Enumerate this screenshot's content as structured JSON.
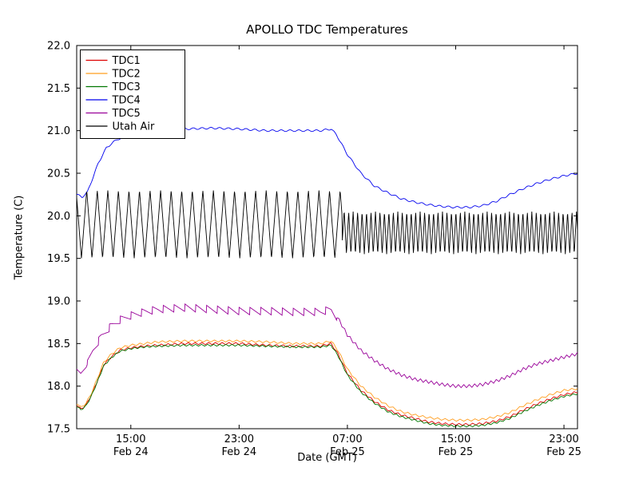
{
  "title": "APOLLO TDC Temperatures",
  "chart_data": {
    "type": "line",
    "title": "APOLLO TDC Temperatures",
    "xlabel": "Date (GMT)",
    "ylabel": "Temperature (C)",
    "ylim": [
      17.5,
      22.0
    ],
    "xlim": [
      0,
      37
    ],
    "grid": false,
    "legend_position": "upper left",
    "yticks": [
      17.5,
      18.0,
      18.5,
      19.0,
      19.5,
      20.0,
      20.5,
      21.0,
      21.5,
      22.0
    ],
    "ytick_labels": [
      "17.5",
      "18.0",
      "18.5",
      "19.0",
      "19.5",
      "20.0",
      "20.5",
      "21.0",
      "21.5",
      "22.0"
    ],
    "xticks": [
      {
        "t": 4,
        "time": "15:00",
        "date": "Feb 24"
      },
      {
        "t": 12,
        "time": "23:00",
        "date": "Feb 24"
      },
      {
        "t": 20,
        "time": "07:00",
        "date": "Feb 25"
      },
      {
        "t": 28,
        "time": "15:00",
        "date": "Feb 25"
      },
      {
        "t": 36,
        "time": "23:00",
        "date": "Feb 25"
      }
    ],
    "x_unit": "hours from Feb 24 11:00 GMT",
    "series": [
      {
        "name": "TDC1",
        "color": "#dd0000",
        "points": [
          [
            0,
            17.78
          ],
          [
            0.3,
            17.73
          ],
          [
            0.7,
            17.78
          ],
          [
            1.1,
            17.9
          ],
          [
            1.5,
            18.05
          ],
          [
            2,
            18.25
          ],
          [
            2.6,
            18.35
          ],
          [
            3.2,
            18.42
          ],
          [
            4,
            18.45
          ],
          [
            5,
            18.47
          ],
          [
            6,
            18.48
          ],
          [
            8,
            18.5
          ],
          [
            10,
            18.5
          ],
          [
            12,
            18.5
          ],
          [
            14,
            18.48
          ],
          [
            16,
            18.47
          ],
          [
            18,
            18.47
          ],
          [
            18.8,
            18.5
          ],
          [
            19.3,
            18.38
          ],
          [
            20,
            18.15
          ],
          [
            21,
            17.95
          ],
          [
            22,
            17.82
          ],
          [
            23,
            17.72
          ],
          [
            24,
            17.66
          ],
          [
            25,
            17.62
          ],
          [
            26,
            17.58
          ],
          [
            27,
            17.56
          ],
          [
            28,
            17.55
          ],
          [
            29,
            17.55
          ],
          [
            30,
            17.56
          ],
          [
            31,
            17.59
          ],
          [
            32,
            17.64
          ],
          [
            33,
            17.72
          ],
          [
            34,
            17.79
          ],
          [
            35,
            17.85
          ],
          [
            36,
            17.9
          ],
          [
            37,
            17.93
          ]
        ],
        "ripple": [
          {
            "t0": 0,
            "t1": 37,
            "amp": 0.012,
            "period": 0.5,
            "shape": "tri"
          }
        ]
      },
      {
        "name": "TDC2",
        "color": "#ff9d1e",
        "points": [
          [
            0,
            17.8
          ],
          [
            0.3,
            17.75
          ],
          [
            0.7,
            17.8
          ],
          [
            1.1,
            17.92
          ],
          [
            1.5,
            18.08
          ],
          [
            2,
            18.28
          ],
          [
            2.6,
            18.38
          ],
          [
            3.2,
            18.45
          ],
          [
            4,
            18.48
          ],
          [
            5,
            18.5
          ],
          [
            6,
            18.52
          ],
          [
            8,
            18.53
          ],
          [
            10,
            18.53
          ],
          [
            12,
            18.53
          ],
          [
            14,
            18.52
          ],
          [
            16,
            18.5
          ],
          [
            18,
            18.5
          ],
          [
            18.8,
            18.53
          ],
          [
            19.3,
            18.42
          ],
          [
            20,
            18.2
          ],
          [
            21,
            18.0
          ],
          [
            22,
            17.87
          ],
          [
            23,
            17.77
          ],
          [
            24,
            17.7
          ],
          [
            25,
            17.66
          ],
          [
            26,
            17.63
          ],
          [
            27,
            17.61
          ],
          [
            28,
            17.6
          ],
          [
            29,
            17.6
          ],
          [
            30,
            17.61
          ],
          [
            31,
            17.64
          ],
          [
            32,
            17.69
          ],
          [
            33,
            17.77
          ],
          [
            34,
            17.84
          ],
          [
            35,
            17.9
          ],
          [
            36,
            17.95
          ],
          [
            37,
            17.97
          ]
        ],
        "ripple": [
          {
            "t0": 0,
            "t1": 37,
            "amp": 0.012,
            "period": 0.55,
            "shape": "tri"
          }
        ]
      },
      {
        "name": "TDC3",
        "color": "#007700",
        "points": [
          [
            0,
            17.77
          ],
          [
            0.3,
            17.72
          ],
          [
            0.7,
            17.77
          ],
          [
            1.1,
            17.89
          ],
          [
            1.5,
            18.04
          ],
          [
            2,
            18.24
          ],
          [
            2.6,
            18.34
          ],
          [
            3.2,
            18.41
          ],
          [
            4,
            18.44
          ],
          [
            5,
            18.46
          ],
          [
            6,
            18.47
          ],
          [
            8,
            18.48
          ],
          [
            10,
            18.48
          ],
          [
            12,
            18.48
          ],
          [
            14,
            18.47
          ],
          [
            16,
            18.46
          ],
          [
            18,
            18.46
          ],
          [
            18.8,
            18.48
          ],
          [
            19.3,
            18.36
          ],
          [
            20,
            18.13
          ],
          [
            21,
            17.93
          ],
          [
            22,
            17.8
          ],
          [
            23,
            17.7
          ],
          [
            24,
            17.64
          ],
          [
            25,
            17.6
          ],
          [
            26,
            17.56
          ],
          [
            27,
            17.54
          ],
          [
            28,
            17.53
          ],
          [
            29,
            17.53
          ],
          [
            30,
            17.54
          ],
          [
            31,
            17.57
          ],
          [
            32,
            17.62
          ],
          [
            33,
            17.7
          ],
          [
            34,
            17.77
          ],
          [
            35,
            17.83
          ],
          [
            36,
            17.88
          ],
          [
            37,
            17.91
          ]
        ],
        "ripple": [
          {
            "t0": 0,
            "t1": 37,
            "amp": 0.01,
            "period": 0.45,
            "shape": "tri"
          }
        ]
      },
      {
        "name": "TDC4",
        "color": "#0000ee",
        "points": [
          [
            0,
            20.25
          ],
          [
            0.4,
            20.22
          ],
          [
            0.8,
            20.28
          ],
          [
            1.2,
            20.45
          ],
          [
            1.6,
            20.62
          ],
          [
            2.2,
            20.8
          ],
          [
            3,
            20.9
          ],
          [
            4,
            20.93
          ],
          [
            5,
            20.97
          ],
          [
            6,
            21.0
          ],
          [
            8,
            21.02
          ],
          [
            10,
            21.03
          ],
          [
            12,
            21.02
          ],
          [
            14,
            21.0
          ],
          [
            16,
            21.0
          ],
          [
            18,
            21.0
          ],
          [
            18.8,
            21.02
          ],
          [
            19.2,
            20.95
          ],
          [
            20,
            20.72
          ],
          [
            21,
            20.5
          ],
          [
            22,
            20.35
          ],
          [
            23,
            20.27
          ],
          [
            24,
            20.2
          ],
          [
            25,
            20.16
          ],
          [
            26,
            20.13
          ],
          [
            27,
            20.11
          ],
          [
            28,
            20.1
          ],
          [
            29,
            20.1
          ],
          [
            30,
            20.12
          ],
          [
            31,
            20.17
          ],
          [
            32,
            20.25
          ],
          [
            33,
            20.32
          ],
          [
            34,
            20.38
          ],
          [
            35,
            20.43
          ],
          [
            36,
            20.47
          ],
          [
            37,
            20.5
          ]
        ],
        "ripple": [
          {
            "t0": 0,
            "t1": 37,
            "amp": 0.01,
            "period": 0.65,
            "shape": "sin"
          }
        ]
      },
      {
        "name": "TDC5",
        "color": "#990099",
        "points": [
          [
            0,
            18.2
          ],
          [
            0.3,
            18.15
          ],
          [
            0.7,
            18.22
          ],
          [
            1.2,
            18.42
          ],
          [
            1.8,
            18.58
          ],
          [
            2.5,
            18.7
          ],
          [
            3.2,
            18.78
          ],
          [
            4,
            18.83
          ],
          [
            5,
            18.87
          ],
          [
            6,
            18.9
          ],
          [
            8,
            18.92
          ],
          [
            10,
            18.9
          ],
          [
            12,
            18.88
          ],
          [
            14,
            18.88
          ],
          [
            16,
            18.87
          ],
          [
            18,
            18.87
          ],
          [
            18.8,
            18.9
          ],
          [
            19.3,
            18.8
          ],
          [
            20,
            18.6
          ],
          [
            21,
            18.42
          ],
          [
            22,
            18.3
          ],
          [
            23,
            18.2
          ],
          [
            24,
            18.13
          ],
          [
            25,
            18.08
          ],
          [
            26,
            18.05
          ],
          [
            27,
            18.02
          ],
          [
            28,
            18.0
          ],
          [
            29,
            18.0
          ],
          [
            30,
            18.02
          ],
          [
            31,
            18.06
          ],
          [
            32,
            18.12
          ],
          [
            33,
            18.2
          ],
          [
            34,
            18.26
          ],
          [
            35,
            18.3
          ],
          [
            36,
            18.34
          ],
          [
            37,
            18.38
          ]
        ],
        "ripple": [
          {
            "t0": 0.8,
            "t1": 19.2,
            "amp": 0.045,
            "period": 0.8,
            "shape": "saw"
          },
          {
            "t0": 19.2,
            "t1": 37,
            "amp": 0.018,
            "period": 0.4,
            "shape": "tri"
          }
        ]
      },
      {
        "name": "Utah Air",
        "color": "#000000",
        "points": [
          [
            0,
            19.9
          ],
          [
            19.6,
            19.9
          ],
          [
            19.8,
            19.8
          ],
          [
            37,
            19.8
          ]
        ],
        "ripple": [
          {
            "t0": 0,
            "t1": 19.6,
            "amp": 0.4,
            "period": 0.78,
            "shape": "tri",
            "phase": 0.55
          },
          {
            "t0": 19.6,
            "t1": 37,
            "amp": 0.25,
            "period": 0.33,
            "shape": "tri"
          }
        ]
      }
    ]
  }
}
